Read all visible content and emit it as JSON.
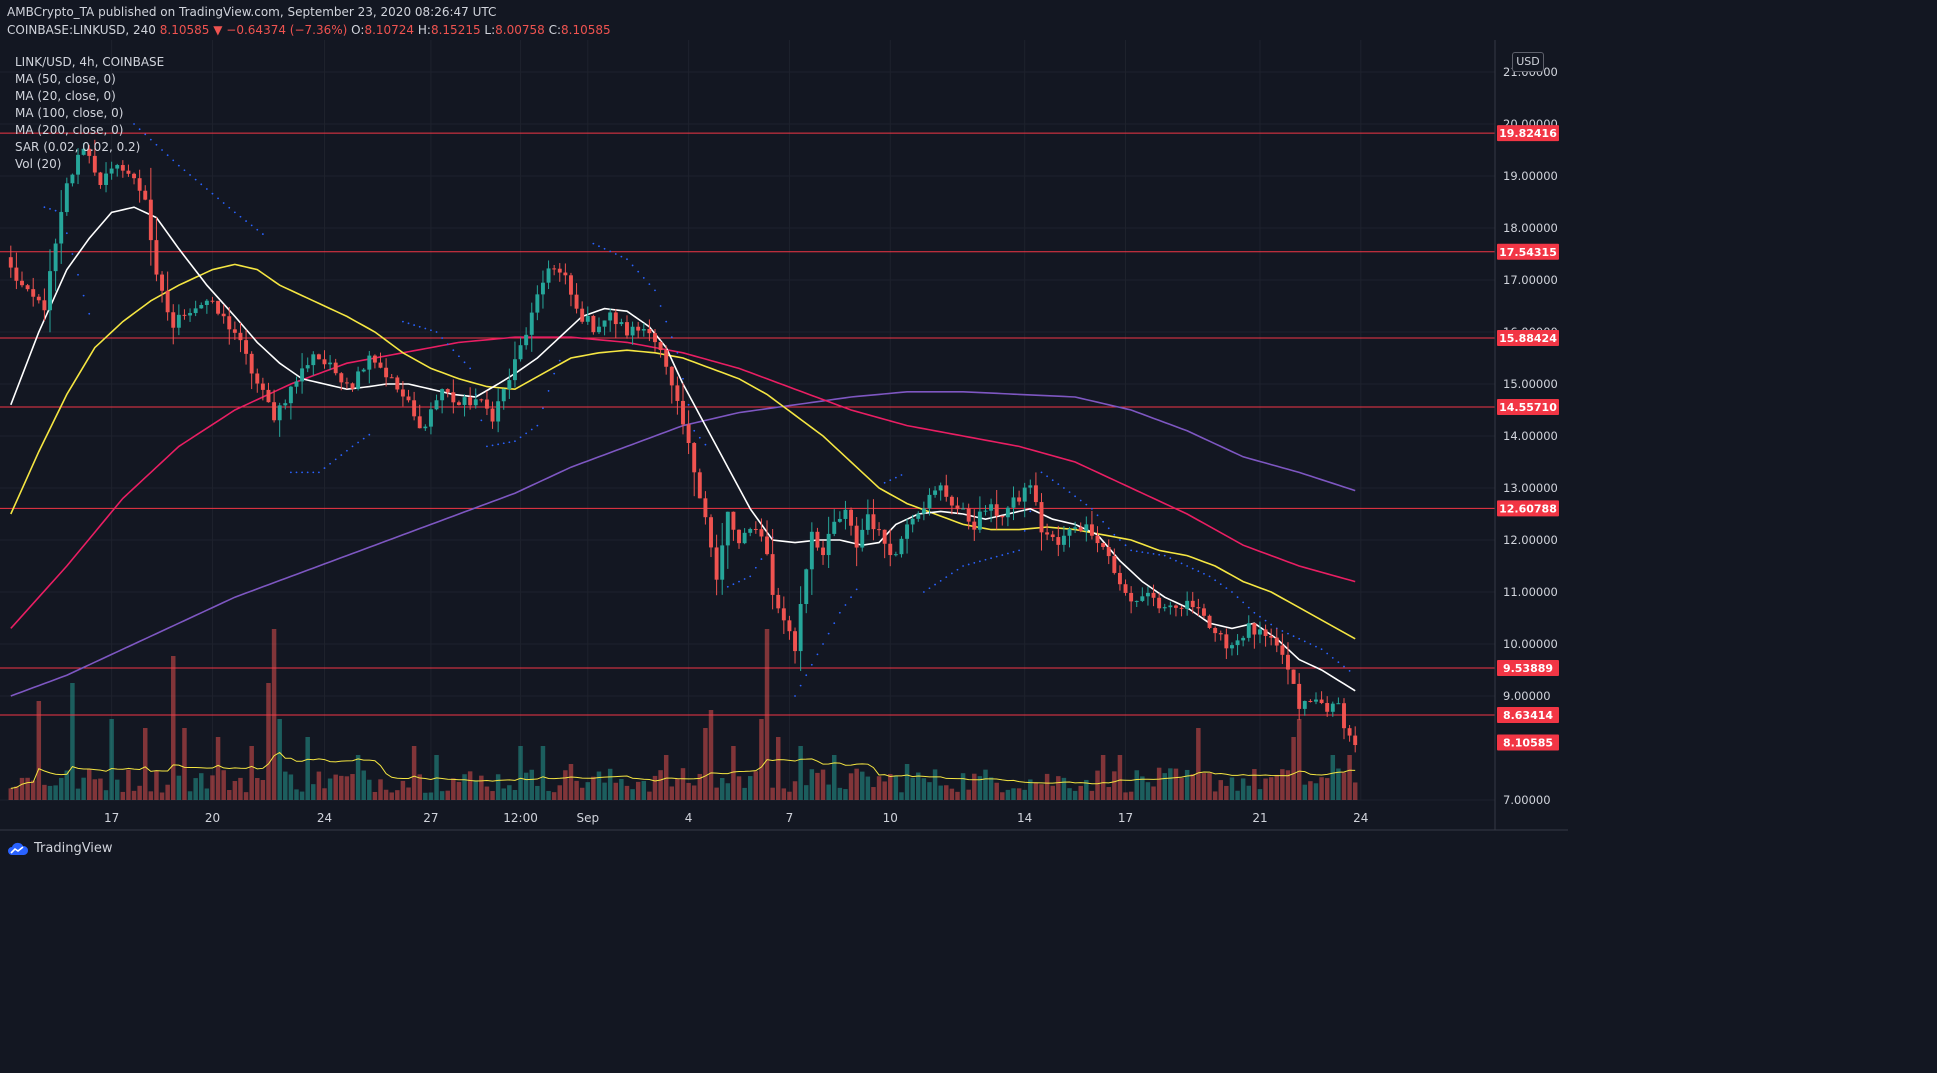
{
  "header": {
    "publisher": "AMBCrypto_TA published on TradingView.com, September 23, 2020 08:26:47 UTC",
    "symbol": "COINBASE:LINKUSD, 240",
    "last": "8.10585",
    "change": "−0.64374 (−7.36%)",
    "o_label": "O:",
    "o_value": "8.10724",
    "h_label": "H:",
    "h_value": "8.15215",
    "l_label": "L:",
    "l_value": "8.00758",
    "c_label": "C:",
    "c_value": "8.10585"
  },
  "legend": {
    "title": "LINK/USD, 4h, COINBASE",
    "ma50": "MA (50, close, 0)",
    "ma20": "MA (20, close, 0)",
    "ma100": "MA (100, close, 0)",
    "ma200": "MA (200, close, 0)",
    "sar": "SAR (0.02, 0.02, 0.2)",
    "vol": "Vol (20)"
  },
  "currency_button": "USD",
  "footer": {
    "brand": "TradingView"
  },
  "colors": {
    "background": "#131722",
    "up": "#26a69a",
    "down": "#ef5350",
    "hline": "#f23645",
    "ma20": "#ffffff",
    "ma50": "#f5e642",
    "ma100": "#e91e63",
    "ma200": "#7e57c2",
    "sar": "#2962ff"
  },
  "chart_data": {
    "type": "candlestick",
    "symbol": "LINK/USD",
    "interval": "4h",
    "ylim": [
      6.8,
      21.8
    ],
    "y_ticks": [
      "21.00000",
      "20.00000",
      "19.00000",
      "18.00000",
      "17.00000",
      "16.00000",
      "15.00000",
      "14.00000",
      "13.00000",
      "12.00000",
      "11.00000",
      "10.00000",
      "9.00000",
      "7.00000"
    ],
    "y_tick_values": [
      21,
      20,
      19,
      18,
      17,
      16,
      15,
      14,
      13,
      12,
      11,
      10,
      9,
      7
    ],
    "x_ticks": [
      "17",
      "20",
      "24",
      "27",
      "12:00",
      "Sep",
      "4",
      "7",
      "10",
      "14",
      "17",
      "21",
      "24"
    ],
    "x_tick_bar_index": [
      18,
      36,
      56,
      75,
      91,
      103,
      121,
      139,
      157,
      181,
      199,
      223,
      241
    ],
    "levels": [
      {
        "value": 19.82416,
        "label": "19.82416"
      },
      {
        "value": 17.54315,
        "label": "17.54315"
      },
      {
        "value": 15.88424,
        "label": "15.88424"
      },
      {
        "value": 14.5571,
        "label": "14.55710"
      },
      {
        "value": 12.60788,
        "label": "12.60788"
      },
      {
        "value": 9.53889,
        "label": "9.53889"
      },
      {
        "value": 8.63414,
        "label": "8.63414"
      }
    ],
    "last_price": {
      "value": 8.10585,
      "label": "8.10585"
    },
    "close_path_anchors": [
      [
        0,
        17.2
      ],
      [
        3,
        16.7
      ],
      [
        6,
        16.5
      ],
      [
        10,
        18.8
      ],
      [
        13,
        19.6
      ],
      [
        16,
        18.9
      ],
      [
        20,
        19.2
      ],
      [
        24,
        18.6
      ],
      [
        26,
        17.0
      ],
      [
        29,
        16.1
      ],
      [
        31,
        16.4
      ],
      [
        35,
        16.6
      ],
      [
        40,
        16.0
      ],
      [
        44,
        15.0
      ],
      [
        47,
        14.4
      ],
      [
        50,
        14.9
      ],
      [
        54,
        15.6
      ],
      [
        57,
        15.3
      ],
      [
        61,
        15.0
      ],
      [
        64,
        15.6
      ],
      [
        67,
        15.2
      ],
      [
        71,
        14.6
      ],
      [
        73,
        14.1
      ],
      [
        77,
        14.9
      ],
      [
        80,
        14.6
      ],
      [
        83,
        14.7
      ],
      [
        86,
        14.4
      ],
      [
        89,
        15.1
      ],
      [
        91,
        15.7
      ],
      [
        94,
        16.6
      ],
      [
        96,
        17.3
      ],
      [
        99,
        17.0
      ],
      [
        101,
        16.4
      ],
      [
        104,
        16.1
      ],
      [
        107,
        16.3
      ],
      [
        110,
        16.0
      ],
      [
        114,
        16.1
      ],
      [
        116,
        15.6
      ],
      [
        120,
        14.2
      ],
      [
        124,
        12.5
      ],
      [
        126,
        11.2
      ],
      [
        128,
        12.5
      ],
      [
        130,
        11.9
      ],
      [
        133,
        12.3
      ],
      [
        135,
        11.8
      ],
      [
        136,
        10.9
      ],
      [
        138,
        10.5
      ],
      [
        140,
        9.9
      ],
      [
        141,
        10.8
      ],
      [
        143,
        12.2
      ],
      [
        145,
        11.7
      ],
      [
        147,
        12.3
      ],
      [
        149,
        12.5
      ],
      [
        151,
        11.9
      ],
      [
        153,
        12.5
      ],
      [
        155,
        12.1
      ],
      [
        158,
        11.7
      ],
      [
        160,
        12.4
      ],
      [
        163,
        12.7
      ],
      [
        166,
        13.0
      ],
      [
        169,
        12.6
      ],
      [
        172,
        12.3
      ],
      [
        174,
        12.6
      ],
      [
        177,
        12.5
      ],
      [
        180,
        12.8
      ],
      [
        182,
        13.1
      ],
      [
        184,
        12.2
      ],
      [
        187,
        11.9
      ],
      [
        190,
        12.3
      ],
      [
        193,
        12.2
      ],
      [
        196,
        11.7
      ],
      [
        198,
        11.1
      ],
      [
        200,
        10.8
      ],
      [
        203,
        11.0
      ],
      [
        206,
        10.6
      ],
      [
        209,
        10.7
      ],
      [
        212,
        10.8
      ],
      [
        215,
        10.1
      ],
      [
        218,
        10.0
      ],
      [
        221,
        10.3
      ],
      [
        224,
        10.1
      ],
      [
        227,
        9.8
      ],
      [
        230,
        8.8
      ],
      [
        233,
        8.9
      ],
      [
        236,
        8.75
      ],
      [
        237,
        8.8
      ],
      [
        238,
        8.5
      ],
      [
        239,
        8.2
      ],
      [
        240,
        8.11
      ]
    ],
    "ma20_anchors": [
      [
        0,
        14.6
      ],
      [
        5,
        16.0
      ],
      [
        10,
        17.2
      ],
      [
        14,
        17.8
      ],
      [
        18,
        18.3
      ],
      [
        22,
        18.4
      ],
      [
        26,
        18.2
      ],
      [
        30,
        17.6
      ],
      [
        35,
        16.9
      ],
      [
        40,
        16.3
      ],
      [
        44,
        15.8
      ],
      [
        48,
        15.4
      ],
      [
        52,
        15.1
      ],
      [
        56,
        15.0
      ],
      [
        60,
        14.9
      ],
      [
        64,
        14.95
      ],
      [
        67,
        15.0
      ],
      [
        71,
        15.0
      ],
      [
        75,
        14.9
      ],
      [
        79,
        14.8
      ],
      [
        83,
        14.75
      ],
      [
        87,
        15.0
      ],
      [
        90,
        15.2
      ],
      [
        94,
        15.5
      ],
      [
        98,
        15.9
      ],
      [
        102,
        16.3
      ],
      [
        106,
        16.45
      ],
      [
        110,
        16.4
      ],
      [
        114,
        16.1
      ],
      [
        117,
        15.7
      ],
      [
        120,
        15.0
      ],
      [
        124,
        14.2
      ],
      [
        128,
        13.4
      ],
      [
        132,
        12.6
      ],
      [
        136,
        12.0
      ],
      [
        140,
        11.95
      ],
      [
        144,
        12.0
      ],
      [
        148,
        12.0
      ],
      [
        152,
        11.9
      ],
      [
        155,
        11.95
      ],
      [
        158,
        12.3
      ],
      [
        162,
        12.5
      ],
      [
        166,
        12.55
      ],
      [
        170,
        12.5
      ],
      [
        174,
        12.4
      ],
      [
        178,
        12.5
      ],
      [
        182,
        12.6
      ],
      [
        186,
        12.4
      ],
      [
        190,
        12.3
      ],
      [
        194,
        12.1
      ],
      [
        198,
        11.6
      ],
      [
        202,
        11.2
      ],
      [
        206,
        10.9
      ],
      [
        210,
        10.7
      ],
      [
        214,
        10.4
      ],
      [
        218,
        10.3
      ],
      [
        222,
        10.4
      ],
      [
        226,
        10.1
      ],
      [
        230,
        9.7
      ],
      [
        234,
        9.5
      ],
      [
        237,
        9.3
      ],
      [
        240,
        9.1
      ]
    ],
    "ma50_anchors": [
      [
        0,
        12.5
      ],
      [
        5,
        13.7
      ],
      [
        10,
        14.8
      ],
      [
        15,
        15.7
      ],
      [
        20,
        16.2
      ],
      [
        25,
        16.6
      ],
      [
        30,
        16.9
      ],
      [
        36,
        17.2
      ],
      [
        40,
        17.3
      ],
      [
        44,
        17.2
      ],
      [
        48,
        16.9
      ],
      [
        54,
        16.6
      ],
      [
        60,
        16.3
      ],
      [
        65,
        16.0
      ],
      [
        70,
        15.6
      ],
      [
        75,
        15.3
      ],
      [
        80,
        15.1
      ],
      [
        85,
        14.95
      ],
      [
        90,
        14.9
      ],
      [
        95,
        15.2
      ],
      [
        100,
        15.5
      ],
      [
        105,
        15.6
      ],
      [
        110,
        15.65
      ],
      [
        115,
        15.6
      ],
      [
        120,
        15.5
      ],
      [
        125,
        15.3
      ],
      [
        130,
        15.1
      ],
      [
        135,
        14.8
      ],
      [
        140,
        14.4
      ],
      [
        145,
        14.0
      ],
      [
        150,
        13.5
      ],
      [
        155,
        13.0
      ],
      [
        160,
        12.7
      ],
      [
        165,
        12.5
      ],
      [
        170,
        12.3
      ],
      [
        175,
        12.2
      ],
      [
        180,
        12.2
      ],
      [
        185,
        12.25
      ],
      [
        190,
        12.2
      ],
      [
        195,
        12.1
      ],
      [
        200,
        12.0
      ],
      [
        205,
        11.8
      ],
      [
        210,
        11.7
      ],
      [
        215,
        11.5
      ],
      [
        220,
        11.2
      ],
      [
        225,
        11.0
      ],
      [
        230,
        10.7
      ],
      [
        235,
        10.4
      ],
      [
        240,
        10.1
      ]
    ],
    "ma100_anchors": [
      [
        0,
        10.3
      ],
      [
        10,
        11.5
      ],
      [
        20,
        12.8
      ],
      [
        30,
        13.8
      ],
      [
        40,
        14.5
      ],
      [
        50,
        15.0
      ],
      [
        60,
        15.4
      ],
      [
        70,
        15.6
      ],
      [
        80,
        15.8
      ],
      [
        90,
        15.9
      ],
      [
        100,
        15.9
      ],
      [
        110,
        15.8
      ],
      [
        120,
        15.6
      ],
      [
        130,
        15.3
      ],
      [
        140,
        14.9
      ],
      [
        150,
        14.5
      ],
      [
        160,
        14.2
      ],
      [
        170,
        14.0
      ],
      [
        180,
        13.8
      ],
      [
        190,
        13.5
      ],
      [
        200,
        13.0
      ],
      [
        210,
        12.5
      ],
      [
        220,
        11.9
      ],
      [
        230,
        11.5
      ],
      [
        240,
        11.2
      ]
    ],
    "ma200_anchors": [
      [
        0,
        9.0
      ],
      [
        10,
        9.4
      ],
      [
        20,
        9.9
      ],
      [
        30,
        10.4
      ],
      [
        40,
        10.9
      ],
      [
        50,
        11.3
      ],
      [
        60,
        11.7
      ],
      [
        70,
        12.1
      ],
      [
        80,
        12.5
      ],
      [
        90,
        12.9
      ],
      [
        100,
        13.4
      ],
      [
        110,
        13.8
      ],
      [
        120,
        14.2
      ],
      [
        130,
        14.45
      ],
      [
        140,
        14.6
      ],
      [
        150,
        14.75
      ],
      [
        160,
        14.85
      ],
      [
        170,
        14.85
      ],
      [
        180,
        14.8
      ],
      [
        190,
        14.75
      ],
      [
        200,
        14.5
      ],
      [
        210,
        14.1
      ],
      [
        220,
        13.6
      ],
      [
        230,
        13.3
      ],
      [
        240,
        12.95
      ]
    ],
    "sar_anchors": [
      [
        6,
        18.4
      ],
      [
        9,
        18.3
      ],
      [
        11,
        17.5
      ],
      [
        13,
        16.7
      ],
      [
        15,
        16.0
      ],
      [
        22,
        20.0
      ],
      [
        30,
        19.2
      ],
      [
        40,
        18.3
      ],
      [
        46,
        17.8
      ],
      [
        50,
        13.3
      ],
      [
        55,
        13.3
      ],
      [
        61,
        13.8
      ],
      [
        65,
        14.1
      ],
      [
        70,
        16.2
      ],
      [
        76,
        16.0
      ],
      [
        82,
        15.3
      ],
      [
        85,
        13.8
      ],
      [
        90,
        13.9
      ],
      [
        94,
        14.2
      ],
      [
        97,
        15.2
      ],
      [
        99,
        15.7
      ],
      [
        104,
        17.7
      ],
      [
        110,
        17.4
      ],
      [
        115,
        16.8
      ],
      [
        119,
        15.6
      ],
      [
        122,
        14.1
      ],
      [
        125,
        13.7
      ],
      [
        128,
        11.1
      ],
      [
        132,
        11.3
      ],
      [
        135,
        11.8
      ],
      [
        137,
        12.3
      ],
      [
        140,
        9.0
      ],
      [
        144,
        9.8
      ],
      [
        148,
        10.6
      ],
      [
        152,
        11.2
      ],
      [
        156,
        13.1
      ],
      [
        160,
        13.3
      ],
      [
        163,
        11.0
      ],
      [
        170,
        11.5
      ],
      [
        180,
        11.8
      ],
      [
        184,
        13.3
      ],
      [
        188,
        13.0
      ],
      [
        193,
        12.6
      ],
      [
        197,
        12.1
      ],
      [
        200,
        11.8
      ],
      [
        206,
        11.7
      ],
      [
        210,
        11.5
      ],
      [
        214,
        11.3
      ],
      [
        218,
        11.0
      ],
      [
        222,
        10.6
      ],
      [
        226,
        10.3
      ],
      [
        230,
        10.1
      ],
      [
        234,
        9.9
      ],
      [
        240,
        9.4
      ]
    ],
    "volume_spikes": [
      [
        5,
        1.1
      ],
      [
        11,
        1.3
      ],
      [
        18,
        0.9
      ],
      [
        24,
        0.8
      ],
      [
        29,
        1.6
      ],
      [
        31,
        0.8
      ],
      [
        37,
        0.7
      ],
      [
        43,
        0.6
      ],
      [
        46,
        1.3
      ],
      [
        47,
        1.9
      ],
      [
        48,
        0.9
      ],
      [
        53,
        0.7
      ],
      [
        62,
        0.5
      ],
      [
        72,
        0.6
      ],
      [
        76,
        0.5
      ],
      [
        91,
        0.6
      ],
      [
        95,
        0.6
      ],
      [
        100,
        0.4
      ],
      [
        117,
        0.5
      ],
      [
        124,
        0.8
      ],
      [
        125,
        1.0
      ],
      [
        129,
        0.6
      ],
      [
        134,
        0.9
      ],
      [
        135,
        1.9
      ],
      [
        137,
        0.7
      ],
      [
        141,
        0.6
      ],
      [
        147,
        0.5
      ],
      [
        160,
        0.4
      ],
      [
        195,
        0.5
      ],
      [
        198,
        0.5
      ],
      [
        212,
        0.8
      ],
      [
        229,
        0.7
      ],
      [
        230,
        0.9
      ],
      [
        236,
        0.5
      ],
      [
        239,
        0.5
      ]
    ]
  }
}
